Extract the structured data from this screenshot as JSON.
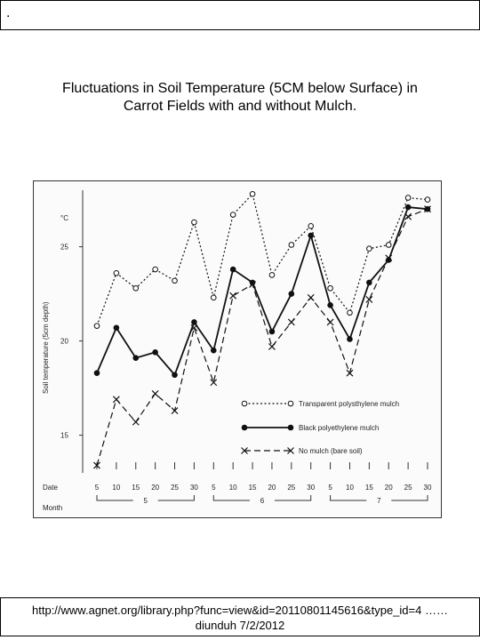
{
  "header": {
    "marker": "."
  },
  "title": {
    "line1": "Fluctuations in Soil Temperature (5CM below Surface) in",
    "line2": "Carrot Fields with and without Mulch."
  },
  "chart_data": {
    "type": "line",
    "ylabel": "Soil temperature (5cm depth)",
    "yunit": "°C",
    "yticks": [
      "15",
      "20",
      "25"
    ],
    "ylim": [
      13,
      28
    ],
    "x_row_label": "Date",
    "month_row_label": "Month",
    "x": [
      "5",
      "10",
      "15",
      "20",
      "25",
      "30",
      "5",
      "10",
      "15",
      "20",
      "25",
      "30",
      "5",
      "10",
      "15",
      "20",
      "25",
      "30"
    ],
    "months": [
      {
        "label": "5",
        "from": 0,
        "to": 5
      },
      {
        "label": "6",
        "from": 6,
        "to": 11
      },
      {
        "label": "7",
        "from": 12,
        "to": 17
      }
    ],
    "grid": false,
    "legend_position": "bottom-right",
    "series": [
      {
        "name": "Transparent polysthylene mulch",
        "style": "dotted",
        "marker": "open-circle",
        "values": [
          20.8,
          23.6,
          22.8,
          23.8,
          23.2,
          26.3,
          22.3,
          26.7,
          27.8,
          23.5,
          25.1,
          26.1,
          22.8,
          21.5,
          24.9,
          25.1,
          27.6,
          27.5
        ]
      },
      {
        "name": "Black polyethylene mulch",
        "style": "solid",
        "marker": "filled-circle",
        "values": [
          18.3,
          20.7,
          19.1,
          19.4,
          18.2,
          21.0,
          19.5,
          23.8,
          23.1,
          20.5,
          22.5,
          25.6,
          21.9,
          20.1,
          23.1,
          24.3,
          27.1,
          27.0
        ]
      },
      {
        "name": "No mulch (bare soil)",
        "style": "dashed",
        "marker": "cross",
        "values": [
          13.4,
          16.9,
          15.7,
          17.2,
          16.3,
          20.7,
          17.8,
          22.4,
          23.0,
          19.7,
          21.0,
          22.3,
          21.0,
          18.3,
          22.2,
          24.4,
          26.6,
          27.0
        ]
      }
    ]
  },
  "footer": {
    "url": "http://www.agnet.org/library.php?func=view&id=20110801145616&type_id=4 ……",
    "credit": "diunduh 7/2/2012"
  }
}
